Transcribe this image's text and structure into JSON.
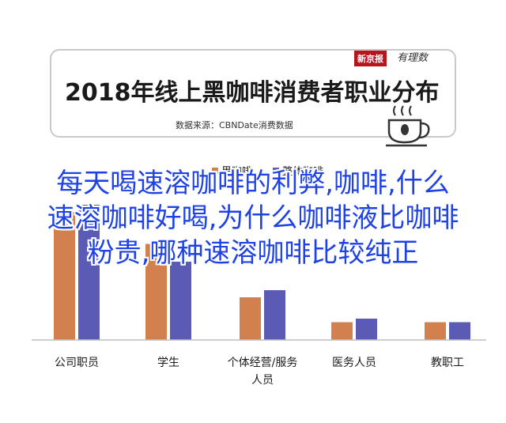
{
  "header": {
    "title": "2018年线上黑咖啡消费者职业分布",
    "source": "数据来源：CBNDate消费数据",
    "brand_red": "新京报",
    "brand_script": "有理数"
  },
  "overlay_title": {
    "lines": [
      "每天喝速溶咖啡的利弊,咖啡,什么",
      "速溶咖啡好喝,为什么咖啡液比咖啡",
      "粉贵,哪种速溶咖啡比较纯正"
    ]
  },
  "chart_data": {
    "type": "bar",
    "title": "2018年线上黑咖啡消费者职业分布",
    "categories": [
      "公司职员",
      "学生",
      "个体经营/服务人员",
      "医务人员",
      "教职工"
    ],
    "series": [
      {
        "name": "黑咖啡",
        "color": "#d2804e",
        "values": [
          36,
          27,
          12,
          5,
          5
        ]
      },
      {
        "name": "整体咖啡",
        "color": "#5b5bb5",
        "values": [
          38,
          22,
          14,
          6,
          5
        ]
      }
    ],
    "ylim": [
      0,
      40
    ],
    "grid": false,
    "legend": "top"
  }
}
